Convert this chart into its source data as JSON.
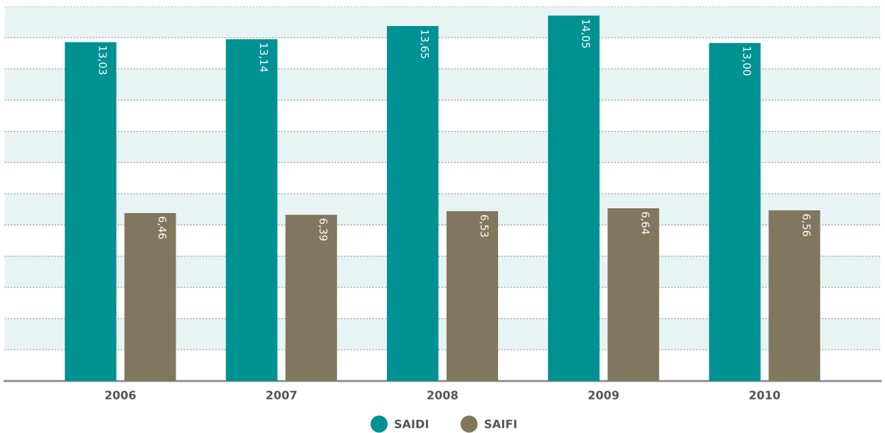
{
  "chart_data": {
    "type": "bar",
    "categories": [
      "2006",
      "2007",
      "2008",
      "2009",
      "2010"
    ],
    "series": [
      {
        "name": "SAIDI",
        "color": "#009193",
        "values": [
          13.03,
          13.14,
          13.65,
          14.05,
          13.0
        ],
        "value_labels": [
          "13,03",
          "13,14",
          "13,65",
          "14,05",
          "13,00"
        ]
      },
      {
        "name": "SAIFI",
        "color": "#80775e",
        "values": [
          6.46,
          6.39,
          6.53,
          6.64,
          6.56
        ],
        "value_labels": [
          "6,46",
          "6,39",
          "6,53",
          "6,64",
          "6,56"
        ]
      }
    ],
    "ylim": [
      0,
      14.4
    ],
    "yticks": [
      {
        "value": 0,
        "label": null
      },
      {
        "value": 1.2,
        "label": null
      },
      {
        "value": 2.4,
        "label": null
      },
      {
        "value": 3.6,
        "label": null
      },
      {
        "value": 4.8,
        "label": null
      },
      {
        "value": 6.0,
        "label": null
      },
      {
        "value": 7.2,
        "label": null
      },
      {
        "value": 8.4,
        "label": null
      },
      {
        "value": 9.6,
        "label": null
      },
      {
        "value": 10.8,
        "label": null
      },
      {
        "value": 12.0,
        "label": null
      },
      {
        "value": 13.2,
        "label": null
      },
      {
        "value": 14.4,
        "label": null
      }
    ],
    "bands": [
      {
        "axis": "y",
        "from": 1.2,
        "to": 2.4,
        "color": "#e8f4f4"
      },
      {
        "axis": "y",
        "from": 3.6,
        "to": 4.8,
        "color": "#e8f4f4"
      },
      {
        "axis": "y",
        "from": 6.0,
        "to": 7.2,
        "color": "#e8f4f4"
      },
      {
        "axis": "y",
        "from": 8.4,
        "to": 9.6,
        "color": "#e8f4f4"
      },
      {
        "axis": "y",
        "from": 10.8,
        "to": 12.0,
        "color": "#e8f4f4"
      },
      {
        "axis": "y",
        "from": 13.2,
        "to": 14.4,
        "color": "#e8f4f4"
      }
    ],
    "grid": "y",
    "tick_labels": "x",
    "legend": "bottom"
  }
}
